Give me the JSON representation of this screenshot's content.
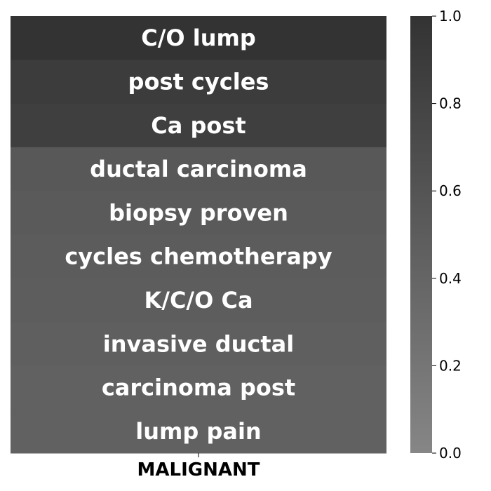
{
  "chart_data": {
    "type": "heatmap",
    "title": "",
    "xlabel": "",
    "ylabel": "",
    "x_categories": [
      "MALIGNANT"
    ],
    "rows": [
      {
        "label": "C/O lump",
        "value": 1.0
      },
      {
        "label": "post cycles",
        "value": 0.89
      },
      {
        "label": "Ca post",
        "value": 0.86
      },
      {
        "label": "ductal carcinoma",
        "value": 0.55
      },
      {
        "label": "biopsy proven",
        "value": 0.53
      },
      {
        "label": "cycles chemotherapy",
        "value": 0.51
      },
      {
        "label": "K/C/O Ca",
        "value": 0.49
      },
      {
        "label": "invasive ductal",
        "value": 0.47
      },
      {
        "label": "carcinoma post",
        "value": 0.45
      },
      {
        "label": "lump pain",
        "value": 0.44
      }
    ],
    "colorbar": {
      "range": [
        0.0,
        1.0
      ],
      "ticks": [
        "0.0",
        "0.2",
        "0.4",
        "0.6",
        "0.8",
        "1.0"
      ],
      "color_low": "#868686",
      "color_high": "#333333"
    }
  }
}
